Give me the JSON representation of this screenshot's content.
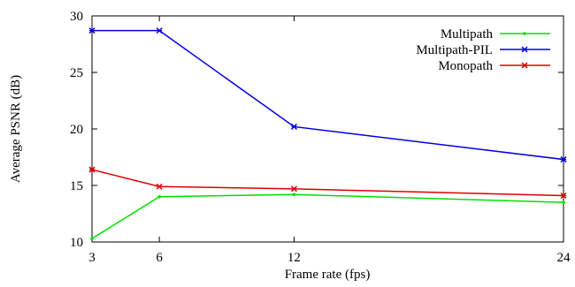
{
  "chart_data": {
    "type": "line",
    "xlabel": "Frame rate (fps)",
    "ylabel": "Average PSNR (dB)",
    "x": [
      3,
      6,
      12,
      24
    ],
    "xticks": [
      "3",
      "6",
      "12",
      "24"
    ],
    "xlim": [
      3,
      24
    ],
    "ylim": [
      10,
      30
    ],
    "yticks": [
      "10",
      "15",
      "20",
      "25",
      "30"
    ],
    "grid": false,
    "legend_position": "top-right",
    "series": [
      {
        "name": "Multipath",
        "color": "#00e000",
        "marker": "dot",
        "values": [
          10.3,
          14.0,
          14.2,
          13.5
        ]
      },
      {
        "name": "Multipath-PIL",
        "color": "#0000e0",
        "marker": "x",
        "values": [
          28.7,
          28.7,
          20.2,
          17.3
        ]
      },
      {
        "name": "Monopath",
        "color": "#e00000",
        "marker": "x",
        "values": [
          16.4,
          14.9,
          14.7,
          14.1
        ]
      }
    ]
  }
}
